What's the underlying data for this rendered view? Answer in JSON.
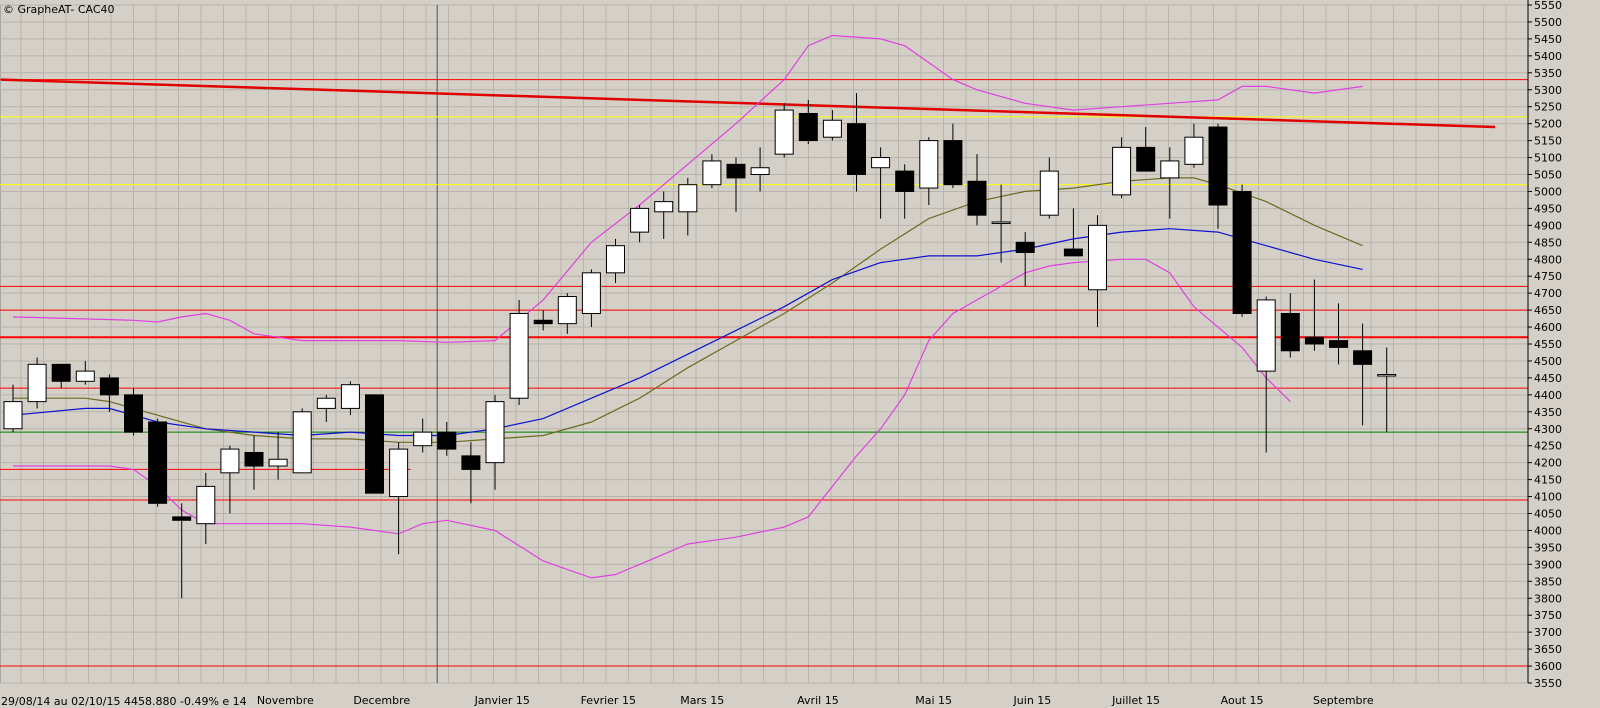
{
  "title": "© GrapheAT- CAC40",
  "info_text": "29/08/14 au 02/10/15  4458.880  -0.49%  e 14",
  "colors": {
    "background": "#d4d0c8",
    "plot_bg": "#d4d0c8",
    "grid": "#b8b4ac",
    "candle_up": "#ffffff",
    "candle_down": "#000000",
    "bollinger": "#e040e0",
    "ma_short": "#1010d0",
    "ma_long": "#6b6b20",
    "hline_red": "#ff0000",
    "hline_yellow": "#ffff00",
    "hline_green": "#008000",
    "trendline": "#e00000"
  },
  "chart_data": {
    "type": "candlestick",
    "title": "© GrapheAT- CAC40",
    "ylim": [
      3550,
      5550
    ],
    "y_ticks": [
      3550,
      3600,
      3650,
      3700,
      3750,
      3800,
      3850,
      3900,
      3950,
      4000,
      4050,
      4100,
      4150,
      4200,
      4250,
      4300,
      4350,
      4400,
      4450,
      4500,
      4550,
      4600,
      4650,
      4700,
      4750,
      4800,
      4850,
      4900,
      4950,
      5000,
      5050,
      5100,
      5150,
      5200,
      5250,
      5300,
      5350,
      5400,
      5450,
      5500,
      5550
    ],
    "x_month_labels": [
      {
        "label": "Novembre",
        "index": 11.3
      },
      {
        "label": "Decembre",
        "index": 15.3
      },
      {
        "label": "Janvier 15",
        "index": 20.3
      },
      {
        "label": "Fevrier 15",
        "index": 24.7
      },
      {
        "label": "Mars 15",
        "index": 28.6
      },
      {
        "label": "Avril 15",
        "index": 33.4
      },
      {
        "label": "Mai 15",
        "index": 38.2
      },
      {
        "label": "Juin 15",
        "index": 42.3
      },
      {
        "label": "Juillet 15",
        "index": 46.6
      },
      {
        "label": "Aout 15",
        "index": 51.0
      },
      {
        "label": "Septembre",
        "index": 55.2
      }
    ],
    "candles": [
      {
        "o": 4300,
        "h": 4430,
        "l": 4290,
        "c": 4380
      },
      {
        "o": 4380,
        "h": 4510,
        "l": 4360,
        "c": 4490
      },
      {
        "o": 4490,
        "h": 4490,
        "l": 4420,
        "c": 4440
      },
      {
        "o": 4440,
        "h": 4500,
        "l": 4430,
        "c": 4470
      },
      {
        "o": 4450,
        "h": 4460,
        "l": 4350,
        "c": 4400
      },
      {
        "o": 4400,
        "h": 4420,
        "l": 4280,
        "c": 4290
      },
      {
        "o": 4320,
        "h": 4330,
        "l": 4070,
        "c": 4080
      },
      {
        "o": 4040,
        "h": 4080,
        "l": 3800,
        "c": 4030
      },
      {
        "o": 4020,
        "h": 4170,
        "l": 3960,
        "c": 4130
      },
      {
        "o": 4170,
        "h": 4250,
        "l": 4050,
        "c": 4240
      },
      {
        "o": 4230,
        "h": 4280,
        "l": 4120,
        "c": 4190
      },
      {
        "o": 4190,
        "h": 4290,
        "l": 4150,
        "c": 4210
      },
      {
        "o": 4170,
        "h": 4360,
        "l": 4170,
        "c": 4350
      },
      {
        "o": 4360,
        "h": 4400,
        "l": 4320,
        "c": 4390
      },
      {
        "o": 4360,
        "h": 4440,
        "l": 4340,
        "c": 4430
      },
      {
        "o": 4400,
        "h": 4400,
        "l": 4110,
        "c": 4110
      },
      {
        "o": 4100,
        "h": 4260,
        "l": 3930,
        "c": 4240
      },
      {
        "o": 4250,
        "h": 4330,
        "l": 4230,
        "c": 4290
      },
      {
        "o": 4290,
        "h": 4320,
        "l": 4220,
        "c": 4240
      },
      {
        "o": 4220,
        "h": 4260,
        "l": 4080,
        "c": 4180
      },
      {
        "o": 4200,
        "h": 4400,
        "l": 4120,
        "c": 4380
      },
      {
        "o": 4390,
        "h": 4680,
        "l": 4370,
        "c": 4640
      },
      {
        "o": 4620,
        "h": 4650,
        "l": 4590,
        "c": 4610
      },
      {
        "o": 4610,
        "h": 4700,
        "l": 4580,
        "c": 4690
      },
      {
        "o": 4640,
        "h": 4770,
        "l": 4600,
        "c": 4760
      },
      {
        "o": 4760,
        "h": 4860,
        "l": 4730,
        "c": 4840
      },
      {
        "o": 4880,
        "h": 4960,
        "l": 4850,
        "c": 4950
      },
      {
        "o": 4940,
        "h": 5000,
        "l": 4860,
        "c": 4970
      },
      {
        "o": 4940,
        "h": 5040,
        "l": 4870,
        "c": 5020
      },
      {
        "o": 5020,
        "h": 5110,
        "l": 5010,
        "c": 5090
      },
      {
        "o": 5080,
        "h": 5100,
        "l": 4940,
        "c": 5040
      },
      {
        "o": 5050,
        "h": 5130,
        "l": 5000,
        "c": 5070
      },
      {
        "o": 5110,
        "h": 5260,
        "l": 5100,
        "c": 5240
      },
      {
        "o": 5230,
        "h": 5270,
        "l": 5140,
        "c": 5150
      },
      {
        "o": 5160,
        "h": 5240,
        "l": 5150,
        "c": 5210
      },
      {
        "o": 5200,
        "h": 5290,
        "l": 5000,
        "c": 5050
      },
      {
        "o": 5070,
        "h": 5130,
        "l": 4920,
        "c": 5100
      },
      {
        "o": 5060,
        "h": 5080,
        "l": 4920,
        "c": 5000
      },
      {
        "o": 5010,
        "h": 5160,
        "l": 4960,
        "c": 5150
      },
      {
        "o": 5150,
        "h": 5200,
        "l": 5010,
        "c": 5020
      },
      {
        "o": 5030,
        "h": 5110,
        "l": 4900,
        "c": 4930
      },
      {
        "o": 4910,
        "h": 5020,
        "l": 4790,
        "c": 4910
      },
      {
        "o": 4850,
        "h": 4880,
        "l": 4720,
        "c": 4820
      },
      {
        "o": 4930,
        "h": 5100,
        "l": 4920,
        "c": 5060
      },
      {
        "o": 4830,
        "h": 4950,
        "l": 4810,
        "c": 4810
      },
      {
        "o": 4710,
        "h": 4930,
        "l": 4600,
        "c": 4900
      },
      {
        "o": 4990,
        "h": 5160,
        "l": 4980,
        "c": 5130
      },
      {
        "o": 5130,
        "h": 5190,
        "l": 5060,
        "c": 5060
      },
      {
        "o": 5040,
        "h": 5130,
        "l": 4920,
        "c": 5090
      },
      {
        "o": 5080,
        "h": 5200,
        "l": 5070,
        "c": 5160
      },
      {
        "o": 5190,
        "h": 5200,
        "l": 4890,
        "c": 4960
      },
      {
        "o": 5000,
        "h": 5020,
        "l": 4630,
        "c": 4640
      },
      {
        "o": 4470,
        "h": 4690,
        "l": 4230,
        "c": 4680
      },
      {
        "o": 4640,
        "h": 4700,
        "l": 4510,
        "c": 4530
      },
      {
        "o": 4570,
        "h": 4740,
        "l": 4530,
        "c": 4550
      },
      {
        "o": 4560,
        "h": 4670,
        "l": 4490,
        "c": 4540
      },
      {
        "o": 4530,
        "h": 4610,
        "l": 4310,
        "c": 4490
      },
      {
        "o": 4460,
        "h": 4540,
        "l": 4290,
        "c": 4460
      }
    ],
    "bollinger_upper": [
      [
        0,
        4630
      ],
      [
        5,
        4620
      ],
      [
        6,
        4615
      ],
      [
        7,
        4630
      ],
      [
        8,
        4640
      ],
      [
        9,
        4620
      ],
      [
        10,
        4580
      ],
      [
        12,
        4560
      ],
      [
        14,
        4560
      ],
      [
        16,
        4560
      ],
      [
        18,
        4555
      ],
      [
        20,
        4560
      ],
      [
        22,
        4680
      ],
      [
        24,
        4850
      ],
      [
        26,
        4960
      ],
      [
        28,
        5080
      ],
      [
        30,
        5200
      ],
      [
        32,
        5330
      ],
      [
        33,
        5430
      ],
      [
        34,
        5460
      ],
      [
        36,
        5450
      ],
      [
        37,
        5430
      ],
      [
        38,
        5380
      ],
      [
        39,
        5330
      ],
      [
        40,
        5300
      ],
      [
        42,
        5260
      ],
      [
        44,
        5240
      ],
      [
        46,
        5250
      ],
      [
        48,
        5260
      ],
      [
        50,
        5270
      ],
      [
        51,
        5310
      ],
      [
        52,
        5310
      ],
      [
        54,
        5290
      ],
      [
        56,
        5310
      ]
    ],
    "bollinger_lower": [
      [
        0,
        4190
      ],
      [
        4,
        4190
      ],
      [
        5,
        4180
      ],
      [
        6,
        4130
      ],
      [
        7,
        4060
      ],
      [
        8,
        4020
      ],
      [
        10,
        4020
      ],
      [
        12,
        4020
      ],
      [
        14,
        4010
      ],
      [
        16,
        3990
      ],
      [
        17,
        4020
      ],
      [
        18,
        4030
      ],
      [
        20,
        4000
      ],
      [
        22,
        3910
      ],
      [
        24,
        3860
      ],
      [
        25,
        3870
      ],
      [
        26,
        3900
      ],
      [
        28,
        3960
      ],
      [
        30,
        3980
      ],
      [
        32,
        4010
      ],
      [
        33,
        4040
      ],
      [
        34,
        4130
      ],
      [
        35,
        4220
      ],
      [
        36,
        4300
      ],
      [
        37,
        4400
      ],
      [
        38,
        4560
      ],
      [
        39,
        4640
      ],
      [
        40,
        4680
      ],
      [
        41,
        4720
      ],
      [
        42,
        4760
      ],
      [
        43,
        4780
      ],
      [
        44,
        4790
      ],
      [
        46,
        4800
      ],
      [
        47,
        4800
      ],
      [
        48,
        4760
      ],
      [
        49,
        4660
      ],
      [
        50,
        4600
      ],
      [
        51,
        4540
      ],
      [
        52,
        4450
      ],
      [
        53,
        4380
      ]
    ],
    "ma_short": [
      [
        0,
        4340
      ],
      [
        3,
        4360
      ],
      [
        4,
        4360
      ],
      [
        5,
        4340
      ],
      [
        6,
        4320
      ],
      [
        8,
        4300
      ],
      [
        10,
        4290
      ],
      [
        12,
        4280
      ],
      [
        14,
        4290
      ],
      [
        16,
        4280
      ],
      [
        18,
        4280
      ],
      [
        20,
        4300
      ],
      [
        22,
        4330
      ],
      [
        24,
        4390
      ],
      [
        26,
        4450
      ],
      [
        28,
        4520
      ],
      [
        30,
        4590
      ],
      [
        32,
        4660
      ],
      [
        34,
        4740
      ],
      [
        36,
        4790
      ],
      [
        38,
        4810
      ],
      [
        40,
        4810
      ],
      [
        42,
        4830
      ],
      [
        44,
        4860
      ],
      [
        46,
        4880
      ],
      [
        48,
        4890
      ],
      [
        50,
        4880
      ],
      [
        52,
        4840
      ],
      [
        54,
        4800
      ],
      [
        56,
        4770
      ]
    ],
    "ma_long": [
      [
        0,
        4390
      ],
      [
        3,
        4390
      ],
      [
        4,
        4380
      ],
      [
        6,
        4340
      ],
      [
        8,
        4300
      ],
      [
        10,
        4280
      ],
      [
        12,
        4270
      ],
      [
        14,
        4270
      ],
      [
        16,
        4260
      ],
      [
        18,
        4260
      ],
      [
        20,
        4270
      ],
      [
        22,
        4280
      ],
      [
        24,
        4320
      ],
      [
        26,
        4390
      ],
      [
        28,
        4480
      ],
      [
        30,
        4560
      ],
      [
        32,
        4640
      ],
      [
        34,
        4730
      ],
      [
        36,
        4830
      ],
      [
        38,
        4920
      ],
      [
        40,
        4970
      ],
      [
        42,
        5000
      ],
      [
        44,
        5010
      ],
      [
        46,
        5030
      ],
      [
        48,
        5040
      ],
      [
        49,
        5040
      ],
      [
        50,
        5020
      ],
      [
        52,
        4970
      ],
      [
        54,
        4900
      ],
      [
        56,
        4840
      ]
    ],
    "horizontal_lines": [
      {
        "value": 5330,
        "color": "red",
        "width": 1
      },
      {
        "value": 5220,
        "color": "yellow",
        "width": 1
      },
      {
        "value": 5020,
        "color": "yellow",
        "width": 1
      },
      {
        "value": 4720,
        "color": "red",
        "width": 1
      },
      {
        "value": 4650,
        "color": "red",
        "width": 1
      },
      {
        "value": 4570,
        "color": "red",
        "width": 2
      },
      {
        "value": 4420,
        "color": "red",
        "width": 1
      },
      {
        "value": 4290,
        "color": "green",
        "width": 1
      },
      {
        "value": 4090,
        "color": "red",
        "width": 1
      },
      {
        "value": 3600,
        "color": "red",
        "width": 1
      }
    ],
    "partial_lines": [
      {
        "value": 4180,
        "from_index": 0,
        "to_index": 16.5,
        "color": "red"
      }
    ],
    "trendline": {
      "from_index": -0.5,
      "from_value": 5330,
      "to_index": 61.5,
      "to_value": 5190
    },
    "vertical_marker_index": 17.6
  }
}
